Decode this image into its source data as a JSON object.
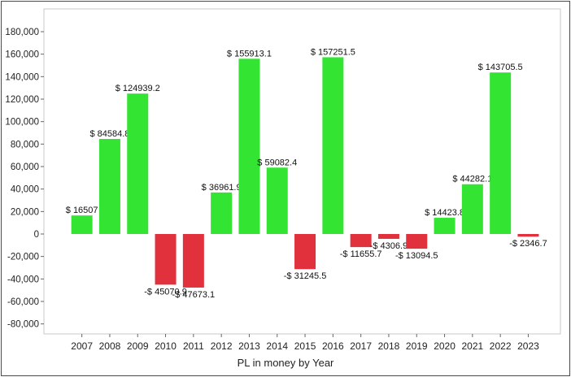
{
  "chart_data": {
    "type": "bar",
    "xlabel": "PL in money by Year",
    "ylabel": "",
    "title": "",
    "ylim": [
      -90000,
      190000
    ],
    "yticks": [
      180000,
      160000,
      140000,
      120000,
      100000,
      80000,
      60000,
      40000,
      20000,
      0,
      -20000,
      -40000,
      -60000,
      -80000
    ],
    "ytick_labels": [
      "180,000",
      "160,000",
      "140,000",
      "120,000",
      "100,000",
      "80,000",
      "60,000",
      "40,000",
      "20,000",
      "0",
      "-20,000",
      "-40,000",
      "-60,000",
      "-80,000"
    ],
    "categories": [
      "2007",
      "2008",
      "2009",
      "2010",
      "2011",
      "2012",
      "2013",
      "2014",
      "2015",
      "2016",
      "2017",
      "2018",
      "2019",
      "2020",
      "2021",
      "2022",
      "2023"
    ],
    "values": [
      16507,
      84584.8,
      124939.2,
      -45070.9,
      -47673.1,
      36961.9,
      155913.1,
      59082.4,
      -31245.5,
      157251.5,
      -11655.7,
      -4306.9,
      -13094.5,
      14423.8,
      44282.1,
      143705.5,
      -2346.7
    ],
    "labels": [
      "$ 16507",
      "$ 84584.8",
      "$ 124939.2",
      "-$ 45070.9",
      "-$ 47673.1",
      "$ 36961.9",
      "$ 155913.1",
      "$ 59082.4",
      "-$ 31245.5",
      "$ 157251.5",
      "-$ 11655.7",
      "-$ 4306.9",
      "-$ 13094.5",
      "$ 14423.8",
      "$ 44282.1",
      "$ 143705.5",
      "-$ 2346.7"
    ],
    "grid": false,
    "colors": {
      "positive": "#33e433",
      "negative": "#e0313c"
    }
  }
}
